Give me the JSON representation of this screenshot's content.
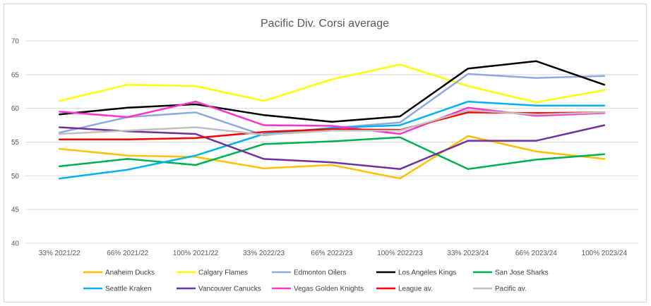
{
  "chart_data": {
    "type": "line",
    "title": "Pacific Div. Corsi average",
    "xlabel": "",
    "ylabel": "",
    "ylim": [
      40,
      70
    ],
    "yticks": [
      "40",
      "45",
      "50",
      "55",
      "60",
      "65",
      "70"
    ],
    "grid": true,
    "legend_position": "bottom",
    "categories": [
      "33% 2021/22",
      "66% 2021/22",
      "100% 2021/22",
      "33% 2022/23",
      "66% 2022/23",
      "100% 2022/23",
      "33% 2023/24",
      "66% 2023/24",
      "100% 2023/24"
    ],
    "series": [
      {
        "name": "Anaheim Ducks",
        "color": "#ffc000",
        "values": [
          54.0,
          53.0,
          52.8,
          51.1,
          51.6,
          49.6,
          55.9,
          53.6,
          52.5
        ]
      },
      {
        "name": "Calgary Flames",
        "color": "#ffff00",
        "values": [
          61.1,
          63.5,
          63.3,
          61.1,
          64.3,
          66.5,
          63.3,
          60.9,
          62.7
        ]
      },
      {
        "name": "Edmonton Oilers",
        "color": "#8faadc",
        "values": [
          56.4,
          58.7,
          59.4,
          56.0,
          57.1,
          57.9,
          65.1,
          64.5,
          64.8
        ]
      },
      {
        "name": "Los Angeles Kings",
        "color": "#000000",
        "values": [
          59.1,
          60.1,
          60.6,
          59.0,
          58.0,
          58.8,
          65.9,
          67.0,
          63.5
        ]
      },
      {
        "name": "San Jose Sharks",
        "color": "#00b050",
        "values": [
          51.4,
          52.5,
          51.6,
          54.7,
          55.1,
          55.7,
          51.0,
          52.4,
          53.2
        ]
      },
      {
        "name": "Seattle Kraken",
        "color": "#00b0f0",
        "values": [
          49.6,
          50.9,
          53.0,
          56.2,
          57.1,
          57.5,
          61.0,
          60.4,
          60.4
        ]
      },
      {
        "name": "Vancouver Canucks",
        "color": "#7030a0",
        "values": [
          57.2,
          56.6,
          56.2,
          52.5,
          52.0,
          51.0,
          55.2,
          55.2,
          57.5
        ]
      },
      {
        "name": "Vegas Golden Knights",
        "color": "#ff33cc",
        "values": [
          59.5,
          58.7,
          61.0,
          57.5,
          57.4,
          56.2,
          60.1,
          58.9,
          59.3
        ]
      },
      {
        "name": "League av.",
        "color": "#ff0000",
        "values": [
          55.4,
          55.4,
          55.6,
          56.5,
          56.9,
          56.8,
          59.4,
          59.3,
          59.4
        ]
      },
      {
        "name": "Pacific av.",
        "color": "#bfbfbf",
        "values": [
          56.2,
          56.7,
          57.2,
          56.1,
          56.7,
          56.7,
          59.7,
          59.1,
          59.4
        ]
      }
    ]
  }
}
